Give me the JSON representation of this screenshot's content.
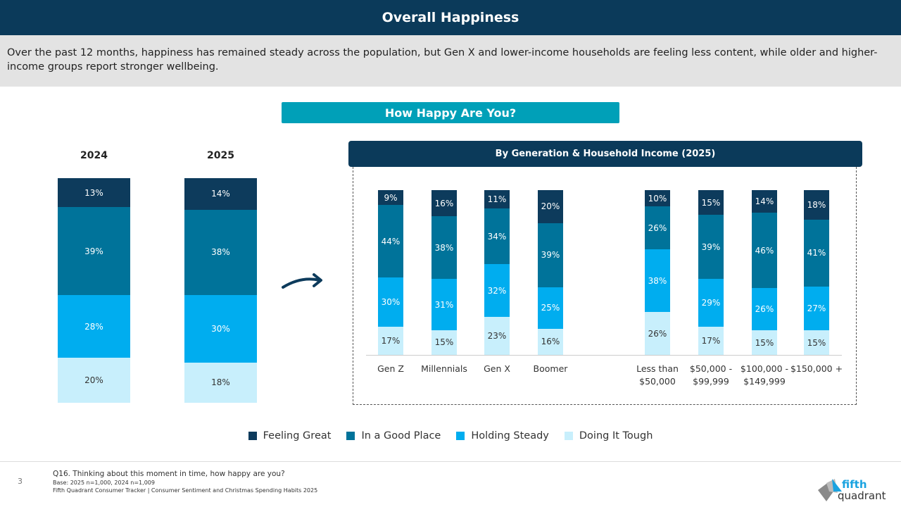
{
  "header": {
    "title": "Overall Happiness"
  },
  "summary": "Over the past 12 months, happiness has remained steady across the population, but Gen X and lower-income households are feeling less content, while older and higher-income groups report stronger wellbeing.",
  "banner": "How Happy Are You?",
  "chart_data": [
    {
      "type": "stacked-bar",
      "categories": [
        "2024",
        "2025"
      ],
      "series": [
        {
          "name": "Doing It Tough",
          "values": [
            20,
            18
          ]
        },
        {
          "name": "Holding Steady",
          "values": [
            28,
            30
          ]
        },
        {
          "name": "In a Good Place",
          "values": [
            39,
            38
          ]
        },
        {
          "name": "Feeling Great",
          "values": [
            13,
            14
          ]
        }
      ],
      "unit": "%"
    },
    {
      "type": "stacked-bar",
      "title": "By Generation & Household Income (2025)",
      "categories": [
        "Gen Z",
        "Millennials",
        "Gen X",
        "Boomer",
        "Less than $50,000",
        "$50,000 - $99,999",
        "$100,000 - $149,999",
        "$150,000 +"
      ],
      "series": [
        {
          "name": "Doing It Tough",
          "values": [
            17,
            15,
            23,
            16,
            26,
            17,
            15,
            15
          ]
        },
        {
          "name": "Holding Steady",
          "values": [
            30,
            31,
            32,
            25,
            38,
            29,
            26,
            27
          ]
        },
        {
          "name": "In a Good Place",
          "values": [
            44,
            38,
            34,
            39,
            26,
            39,
            46,
            41
          ]
        },
        {
          "name": "Feeling Great",
          "values": [
            9,
            16,
            11,
            20,
            10,
            15,
            14,
            18
          ]
        }
      ],
      "unit": "%"
    }
  ],
  "colors": {
    "Feeling Great": "#0d3b5c",
    "In a Good Place": "#00739a",
    "Holding Steady": "#00adef",
    "Doing It Tough": "#c8effc"
  },
  "legend": [
    "Feeling Great",
    "In a Good Place",
    "Holding Steady",
    "Doing It Tough"
  ],
  "footer": {
    "page": "3",
    "question": "Q16. Thinking about this moment in time, how happy are you?",
    "base": "Base: 2025 n=1,000, 2024 n=1,009",
    "source": "Fifth Quadrant Consumer Tracker | Consumer Sentiment and Christmas Spending Habits 2025"
  },
  "logo": {
    "text1": "fifth",
    "text2": "quadrant"
  }
}
